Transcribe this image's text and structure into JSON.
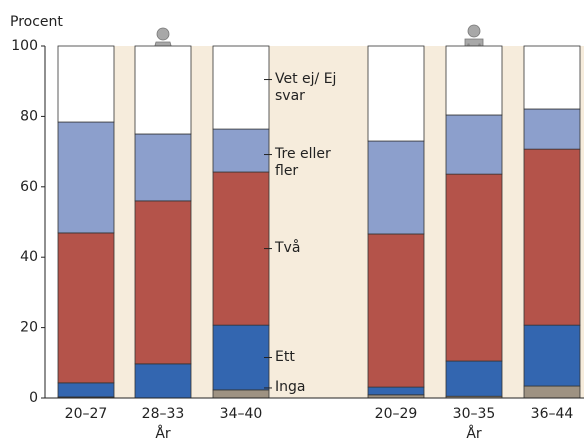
{
  "chart_data": {
    "type": "stacked_bar",
    "ylabel": "Procent",
    "xlabel": "År",
    "categories": [
      "20–27",
      "28–33",
      "34–40",
      "20–29",
      "30–35",
      "36–44"
    ],
    "series": [
      {
        "name": "Inga",
        "color": "#9e9282",
        "values": [
          0.3,
          0,
          2.3,
          0.9,
          0.5,
          3.4
        ]
      },
      {
        "name": "Ett",
        "color": "#3366b0",
        "values": [
          4.0,
          9.7,
          18.4,
          2.2,
          10.0,
          17.3
        ]
      },
      {
        "name": "Två",
        "color": "#b4534a",
        "values": [
          42.6,
          46.3,
          43.5,
          43.5,
          53.1,
          50.0
        ]
      },
      {
        "name": "Tre eller fler",
        "color": "#8c9fcc",
        "values": [
          31.5,
          19.0,
          12.2,
          26.4,
          16.8,
          11.4
        ]
      },
      {
        "name": "Vet ej/ Ej svar",
        "color": "#ffffff",
        "values": [
          21.6,
          25.0,
          23.6,
          27.0,
          19.6,
          17.9
        ]
      }
    ],
    "ylim": [
      0,
      100
    ],
    "yticks": [
      0,
      20,
      40,
      60,
      80,
      100
    ]
  }
}
